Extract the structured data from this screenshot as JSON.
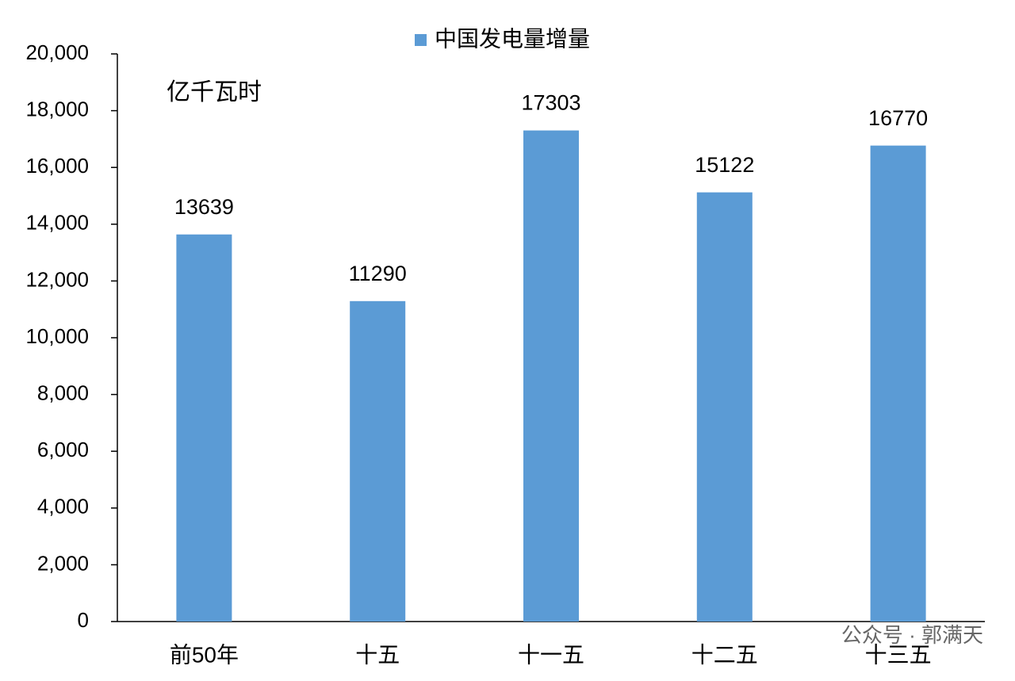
{
  "chart_data": {
    "type": "bar",
    "legend": "中国发电量增量",
    "unit": "亿千瓦时",
    "watermark": "公众号 · 郭满天",
    "categories": [
      "前50年",
      "十五",
      "十一五",
      "十二五",
      "十三五"
    ],
    "series": [
      {
        "name": "中国发电量增量",
        "color": "#5b9bd5",
        "values": [
          13639,
          11290,
          17303,
          15122,
          16770
        ]
      }
    ],
    "ylim": [
      0,
      20000
    ],
    "yticks": [
      0,
      {
        "value": 2000,
        "label": "2,000"
      },
      {
        "value": 4000,
        "label": "4,000"
      },
      {
        "value": 6000,
        "label": "6,000"
      },
      {
        "value": 8000,
        "label": "8,000"
      },
      {
        "value": 10000,
        "label": "10,000"
      },
      {
        "value": 12000,
        "label": "12,000"
      },
      {
        "value": 14000,
        "label": "14,000"
      },
      {
        "value": 16000,
        "label": "16,000"
      },
      {
        "value": 18000,
        "label": "18,000"
      },
      {
        "value": 20000,
        "label": "20,000"
      }
    ],
    "grid": false,
    "legend_position": "top"
  }
}
